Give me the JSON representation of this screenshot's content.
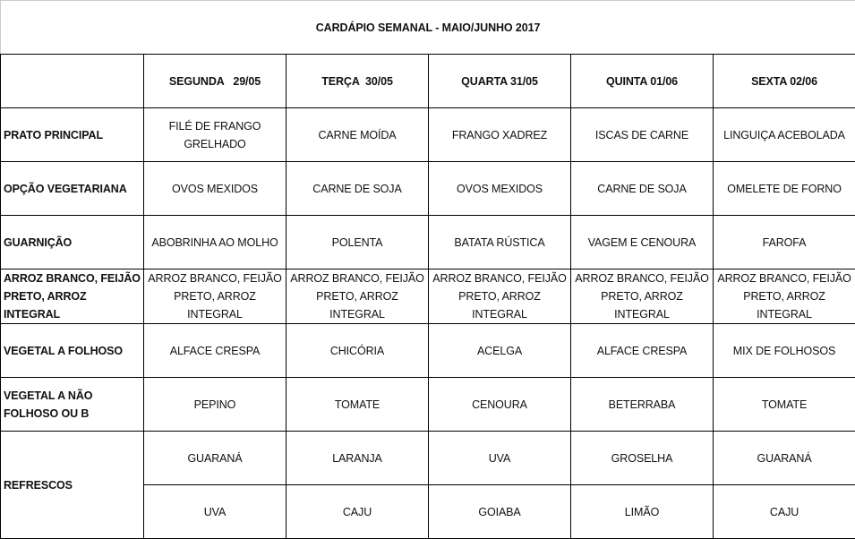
{
  "title": "CARDÁPIO SEMANAL - MAIO/JUNHO 2017",
  "days": [
    "SEGUNDA   29/05",
    "TERÇA  30/05",
    "QUARTA 31/05",
    "QUINTA 01/06",
    "SEXTA 02/06"
  ],
  "rows": [
    {
      "label": "PRATO PRINCIPAL",
      "values": [
        "FILÉ DE FRANGO GRELHADO",
        "CARNE MOÍDA",
        "FRANGO XADREZ",
        "ISCAS DE CARNE",
        "LINGUIÇA ACEBOLADA"
      ]
    },
    {
      "label": "OPÇÃO VEGETARIANA",
      "values": [
        "OVOS MEXIDOS",
        "CARNE DE SOJA",
        "OVOS MEXIDOS",
        "CARNE DE SOJA",
        "OMELETE DE FORNO"
      ]
    },
    {
      "label": "GUARNIÇÃO",
      "values": [
        "ABOBRINHA AO MOLHO",
        "POLENTA",
        "BATATA RÚSTICA",
        "VAGEM E CENOURA",
        "FAROFA"
      ]
    },
    {
      "label": "ARROZ BRANCO, FEIJÃO PRETO, ARROZ INTEGRAL",
      "values": [
        "ARROZ BRANCO, FEIJÃO PRETO, ARROZ INTEGRAL",
        "ARROZ BRANCO, FEIJÃO PRETO, ARROZ INTEGRAL",
        "ARROZ BRANCO, FEIJÃO PRETO, ARROZ INTEGRAL",
        "ARROZ BRANCO, FEIJÃO PRETO, ARROZ INTEGRAL",
        "ARROZ BRANCO, FEIJÃO PRETO, ARROZ INTEGRAL"
      ]
    },
    {
      "label": "VEGETAL A FOLHOSO",
      "values": [
        "ALFACE CRESPA",
        "CHICÓRIA",
        "ACELGA",
        "ALFACE CRESPA",
        "MIX DE FOLHOSOS"
      ]
    },
    {
      "label": "VEGETAL A NÃO FOLHOSO OU B",
      "values": [
        "PEPINO",
        "TOMATE",
        "CENOURA",
        "BETERRABA",
        "TOMATE"
      ]
    }
  ],
  "refrescos": {
    "label": "REFRESCOS",
    "row1": [
      "GUARANÁ",
      "LARANJA",
      "UVA",
      "GROSELHA",
      "GUARANÁ"
    ],
    "row2": [
      "UVA",
      "CAJU",
      "GOIABA",
      "LIMÃO",
      "CAJU"
    ]
  }
}
